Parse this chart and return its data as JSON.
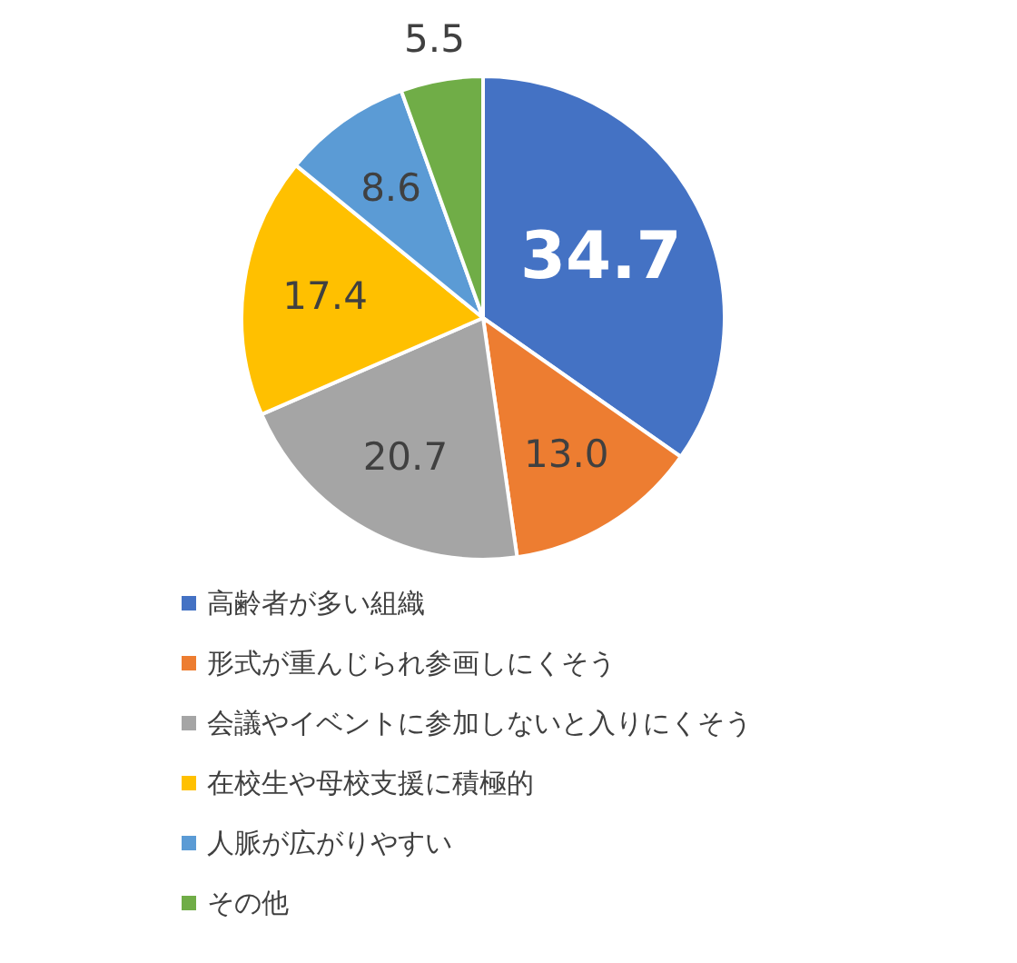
{
  "chart_data": {
    "type": "pie",
    "categories": [
      "高齢者が多い組織",
      "形式が重んじられ参画しにくそう",
      "会議やイベントに参加しないと入りにくそう",
      "在校生や母校支援に積極的",
      "人脈が広がりやすい",
      "その他"
    ],
    "values": [
      34.7,
      13.0,
      20.7,
      17.4,
      8.6,
      5.5
    ],
    "colors": [
      "#4472c4",
      "#ed7d31",
      "#a5a5a5",
      "#ffc000",
      "#5b9bd5",
      "#70ad47"
    ],
    "value_labels": [
      "34.7",
      "13.0",
      "20.7",
      "17.4",
      "8.6",
      "5.5"
    ],
    "legend": "bottom"
  }
}
